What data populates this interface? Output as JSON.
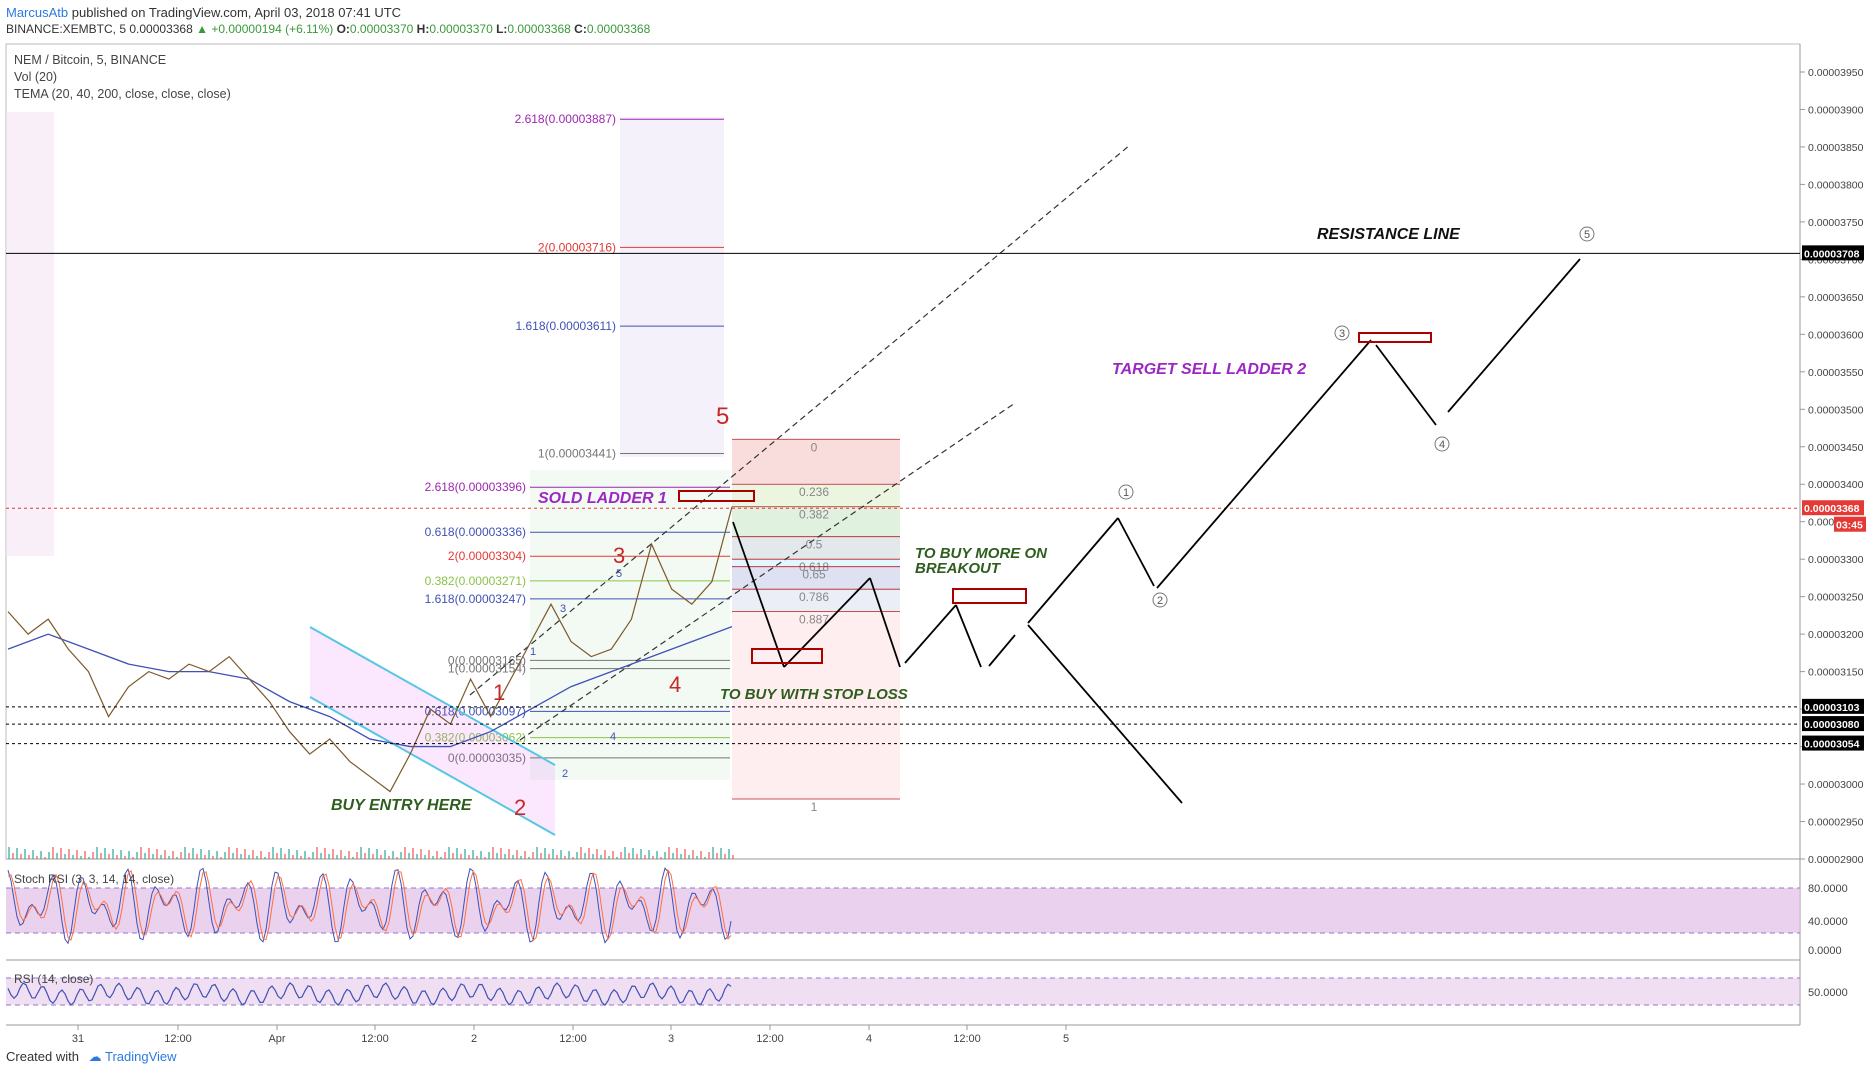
{
  "header": {
    "author": "MarcusAtb",
    "published_text": "published on TradingView.com, April 03, 2018 07:41 UTC",
    "symbol_line": "BINANCE:XEMBTC, 5",
    "price": "0.00003368",
    "change": "+0.00000194 (+6.11%)",
    "open_label": "O:",
    "open": "0.00003370",
    "high_label": "H:",
    "high": "0.00003370",
    "low_label": "L:",
    "low": "0.00003368",
    "close_label": "C:",
    "close": "0.00003368"
  },
  "legend": {
    "pair": "NEM / Bitcoin, 5, BINANCE",
    "volume": "Vol (20)",
    "tema": "TEMA (20, 40, 200, close, close, close)"
  },
  "footer": {
    "created_with": "Created with",
    "brand": "TradingView"
  },
  "chart_data": {
    "type": "line",
    "symbol": "NEM / Bitcoin",
    "exchange": "BINANCE",
    "timeframe": "5",
    "x_ticks": [
      "31",
      "12:00",
      "Apr",
      "12:00",
      "2",
      "12:00",
      "3",
      "12:00",
      "4",
      "12:00",
      "5"
    ],
    "y_ticks": [
      "0.00002900",
      "0.00002950",
      "0.00003000",
      "0.00003050",
      "0.00003100",
      "0.00003150",
      "0.00003200",
      "0.00003250",
      "0.00003300",
      "0.00003350",
      "0.00003400",
      "0.00003450",
      "0.00003500",
      "0.00003550",
      "0.00003600",
      "0.00003650",
      "0.00003700",
      "0.00003750",
      "0.00003800",
      "0.00003850",
      "0.00003900",
      "0.00003950"
    ],
    "ylim": [
      2.9e-05,
      3.97e-05
    ],
    "price_series": {
      "name": "XEMBTC",
      "points": [
        [
          0,
          3.23e-05
        ],
        [
          1,
          3.2e-05
        ],
        [
          2,
          3.22e-05
        ],
        [
          3,
          3.18e-05
        ],
        [
          4,
          3.15e-05
        ],
        [
          5,
          3.09e-05
        ],
        [
          6,
          3.13e-05
        ],
        [
          7,
          3.15e-05
        ],
        [
          8,
          3.14e-05
        ],
        [
          9,
          3.16e-05
        ],
        [
          10,
          3.15e-05
        ],
        [
          11,
          3.17e-05
        ],
        [
          12,
          3.14e-05
        ],
        [
          13,
          3.11e-05
        ],
        [
          14,
          3.07e-05
        ],
        [
          15,
          3.04e-05
        ],
        [
          16,
          3.06e-05
        ],
        [
          17,
          3.03e-05
        ],
        [
          18,
          3.01e-05
        ],
        [
          19,
          2.99e-05
        ],
        [
          20,
          3.04e-05
        ],
        [
          21,
          3.1e-05
        ],
        [
          22,
          3.08e-05
        ],
        [
          23,
          3.14e-05
        ],
        [
          24,
          3.09e-05
        ],
        [
          25,
          3.14e-05
        ],
        [
          26,
          3.19e-05
        ],
        [
          27,
          3.24e-05
        ],
        [
          28,
          3.19e-05
        ],
        [
          29,
          3.17e-05
        ],
        [
          30,
          3.18e-05
        ],
        [
          31,
          3.22e-05
        ],
        [
          32,
          3.32e-05
        ],
        [
          33,
          3.26e-05
        ],
        [
          34,
          3.24e-05
        ],
        [
          35,
          3.27e-05
        ],
        [
          36,
          3.37e-05
        ]
      ]
    },
    "tema_series": {
      "points": [
        [
          0,
          3.18e-05
        ],
        [
          2,
          3.2e-05
        ],
        [
          4,
          3.18e-05
        ],
        [
          6,
          3.16e-05
        ],
        [
          8,
          3.15e-05
        ],
        [
          10,
          3.15e-05
        ],
        [
          12,
          3.14e-05
        ],
        [
          14,
          3.11e-05
        ],
        [
          16,
          3.09e-05
        ],
        [
          18,
          3.06e-05
        ],
        [
          20,
          3.05e-05
        ],
        [
          22,
          3.05e-05
        ],
        [
          24,
          3.07e-05
        ],
        [
          26,
          3.1e-05
        ],
        [
          28,
          3.13e-05
        ],
        [
          30,
          3.15e-05
        ],
        [
          32,
          3.17e-05
        ],
        [
          34,
          3.19e-05
        ],
        [
          36,
          3.21e-05
        ]
      ]
    },
    "price_labels": [
      {
        "value": "0.00003708",
        "kind": "resistance",
        "price": 3.708e-05
      },
      {
        "value": "0.00003368",
        "kind": "last",
        "price": 3.368e-05
      },
      {
        "value": "03:45",
        "kind": "countdown",
        "price": 3.346e-05
      },
      {
        "value": "0.00003103",
        "kind": "level",
        "price": 3.103e-05
      },
      {
        "value": "0.00003080",
        "kind": "level",
        "price": 3.08e-05
      },
      {
        "value": "0.00003054",
        "kind": "level",
        "price": 3.054e-05
      }
    ],
    "fib_extension_left": [
      {
        "label": "2.618(0.00003887)",
        "price": 3.887e-05,
        "color": "#9c27b0"
      },
      {
        "label": "2(0.00003716)",
        "price": 3.716e-05,
        "color": "#e53935"
      },
      {
        "label": "1.618(0.00003611)",
        "price": 3.611e-05,
        "color": "#3f51b5"
      },
      {
        "label": "1(0.00003441)",
        "price": 3.441e-05,
        "color": "#757575"
      }
    ],
    "fib_extension_inner": [
      {
        "label": "2.618(0.00003396)",
        "price": 3.396e-05,
        "color": "#9c27b0"
      },
      {
        "label": "0.618(0.00003336)",
        "price": 3.336e-05,
        "color": "#3f51b5"
      },
      {
        "label": "2(0.00003304)",
        "price": 3.304e-05,
        "color": "#e53935"
      },
      {
        "label": "0.382(0.00003271)",
        "price": 3.271e-05,
        "color": "#8bc34a"
      },
      {
        "label": "1.618(0.00003247)",
        "price": 3.247e-05,
        "color": "#3f51b5"
      },
      {
        "label": "0(0.00003165)",
        "price": 3.165e-05,
        "color": "#757575"
      },
      {
        "label": "1(0.00003154)",
        "price": 3.154e-05,
        "color": "#757575"
      },
      {
        "label": "0.618(0.00003097)",
        "price": 3.097e-05,
        "color": "#3f51b5"
      },
      {
        "label": "0.382(0.00003062)",
        "price": 3.062e-05,
        "color": "#8bc34a"
      },
      {
        "label": "0(0.00003035)",
        "price": 3.035e-05,
        "color": "#757575"
      }
    ],
    "fib_retracement_right": [
      {
        "label": "0",
        "price": 3.46e-05
      },
      {
        "label": "0.236",
        "price": 3.4e-05
      },
      {
        "label": "0.382",
        "price": 3.37e-05
      },
      {
        "label": "0.5",
        "price": 3.33e-05
      },
      {
        "label": "0.618",
        "price": 3.3e-05
      },
      {
        "label": "0.65",
        "price": 3.29e-05
      },
      {
        "label": "0.786",
        "price": 3.26e-05
      },
      {
        "label": "0.887",
        "price": 3.23e-05
      },
      {
        "label": "1",
        "price": 2.98e-05
      }
    ],
    "elliott_labels": [
      "1",
      "2",
      "3",
      "4",
      "5"
    ],
    "small_wave_labels": [
      "1",
      "2",
      "3",
      "4",
      "5"
    ],
    "circled_labels": [
      "1",
      "2",
      "3",
      "4",
      "5"
    ],
    "annotations": {
      "resistance": "RESISTANCE LINE",
      "target_sell": "TARGET SELL  LADDER 2",
      "sold_ladder": "SOLD  LADDER 1",
      "buy_more_1": "TO BUY MORE ON",
      "buy_more_2": "BREAKOUT",
      "buy_stop": "TO BUY WITH STOP LOSS",
      "buy_entry": "BUY ENTRY HERE"
    },
    "stoch_rsi": {
      "title": "Stoch RSI (3, 3, 14, 14, close)",
      "ticks": [
        "80.0000",
        "40.0000",
        "0.0000"
      ],
      "ylim": [
        0,
        100
      ]
    },
    "rsi": {
      "title": "RSI (14, close)",
      "ticks": [
        "50.0000"
      ],
      "ylim": [
        0,
        100
      ]
    },
    "colors": {
      "up": "#26a69a",
      "down": "#ef5350",
      "tema": "#3f51b5",
      "annotation_purple": "#9c27c4",
      "annotation_green": "#2e5e1e",
      "wave_red": "#c62828",
      "channel": "#4dd0e1"
    }
  }
}
